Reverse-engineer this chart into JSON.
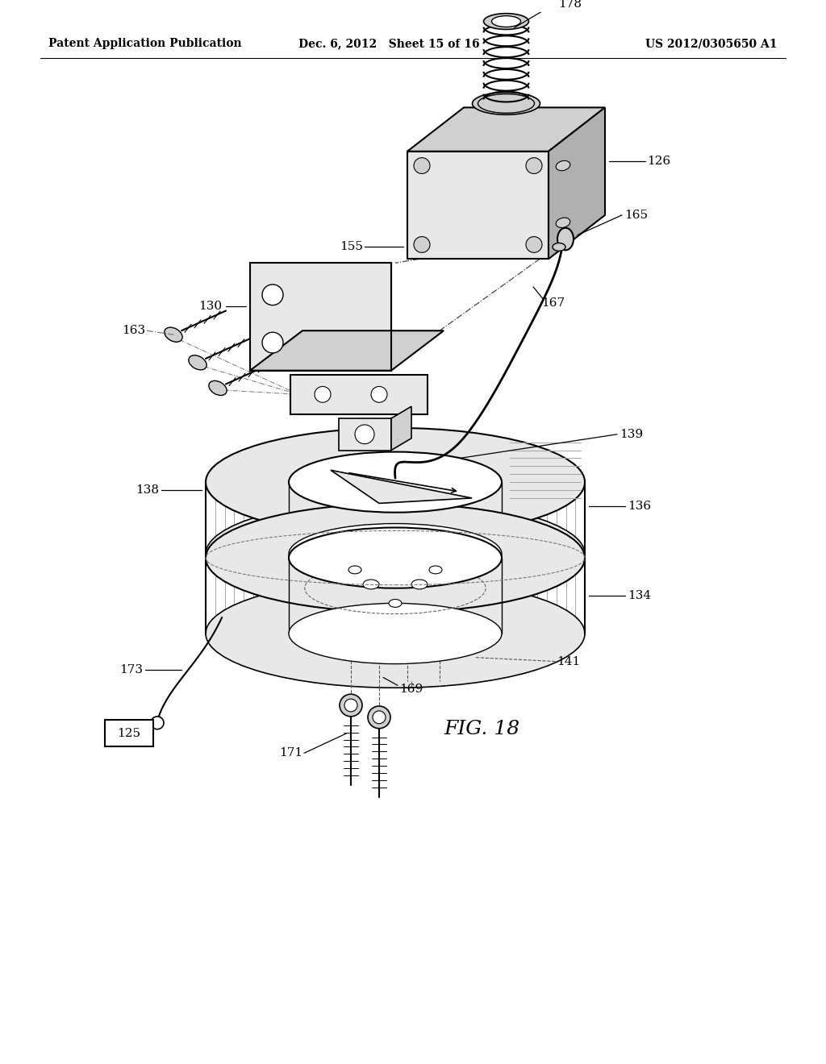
{
  "bg_color": "#ffffff",
  "line_color": "#000000",
  "header_left": "Patent Application Publication",
  "header_mid": "Dec. 6, 2012   Sheet 15 of 16",
  "header_right": "US 2012/0305650 A1",
  "fig_label": "FIG. 18",
  "gray_light": "#e8e8e8",
  "gray_mid": "#d0d0d0",
  "gray_dark": "#b0b0b0",
  "gray_stripe": "#c8c8c8",
  "hatch_color": "#aaaaaa"
}
